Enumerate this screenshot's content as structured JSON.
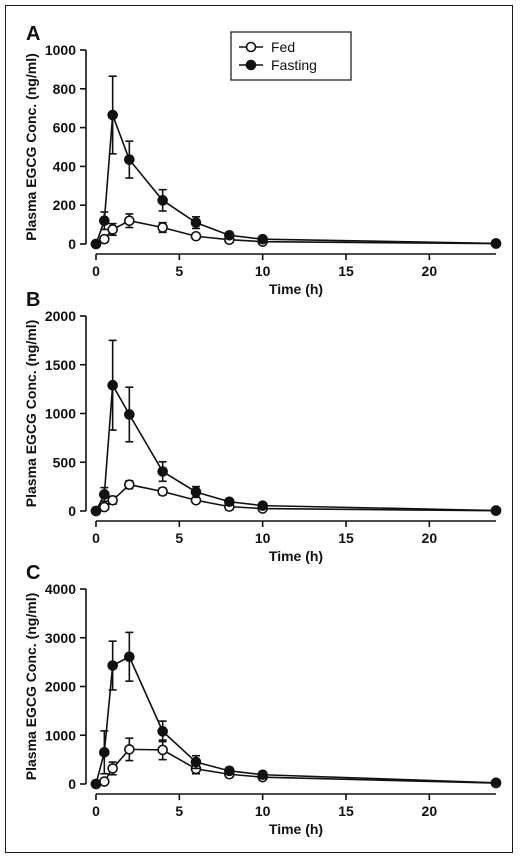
{
  "chart_data": [
    {
      "panel": "A",
      "type": "line",
      "xlabel": "Time (h)",
      "ylabel": "Plasma EGCG Conc. (ng/ml)",
      "xlim": [
        0,
        24
      ],
      "ylim": [
        0,
        1000
      ],
      "xticks": [
        0,
        5,
        10,
        15,
        20
      ],
      "yticks": [
        0,
        200,
        400,
        600,
        800,
        1000
      ],
      "legend": {
        "placement": "top-center",
        "entries": [
          "Fed",
          "Fasting"
        ]
      },
      "series": [
        {
          "name": "Fed",
          "marker": "open-circle",
          "x": [
            0,
            0.5,
            1,
            2,
            4,
            6,
            8,
            10,
            24
          ],
          "y": [
            0,
            25,
            75,
            120,
            85,
            40,
            22,
            12,
            2
          ],
          "err": [
            0,
            15,
            30,
            35,
            25,
            12,
            8,
            6,
            0
          ]
        },
        {
          "name": "Fasting",
          "marker": "filled-circle",
          "x": [
            0,
            0.5,
            1,
            2,
            4,
            6,
            8,
            10,
            24
          ],
          "y": [
            0,
            120,
            665,
            435,
            225,
            110,
            45,
            25,
            3
          ],
          "err": [
            0,
            45,
            200,
            95,
            55,
            30,
            15,
            8,
            0
          ]
        }
      ]
    },
    {
      "panel": "B",
      "type": "line",
      "xlabel": "Time (h)",
      "ylabel": "Plasma EGCG Conc. (ng/ml)",
      "xlim": [
        0,
        24
      ],
      "ylim": [
        0,
        2000
      ],
      "xticks": [
        0,
        5,
        10,
        15,
        20
      ],
      "yticks": [
        0,
        500,
        1000,
        1500,
        2000
      ],
      "series": [
        {
          "name": "Fed",
          "marker": "open-circle",
          "x": [
            0,
            0.5,
            1,
            2,
            4,
            6,
            8,
            10,
            24
          ],
          "y": [
            0,
            40,
            110,
            270,
            200,
            110,
            45,
            25,
            3
          ],
          "err": [
            0,
            25,
            40,
            40,
            35,
            25,
            10,
            8,
            0
          ]
        },
        {
          "name": "Fasting",
          "marker": "filled-circle",
          "x": [
            0,
            0.5,
            1,
            2,
            4,
            6,
            8,
            10,
            24
          ],
          "y": [
            0,
            170,
            1290,
            990,
            405,
            195,
            95,
            55,
            5
          ],
          "err": [
            0,
            70,
            460,
            280,
            100,
            55,
            25,
            15,
            0
          ]
        }
      ]
    },
    {
      "panel": "C",
      "type": "line",
      "xlabel": "Time (h)",
      "ylabel": "Plasma EGCG Conc. (ng/ml)",
      "xlim": [
        0,
        24
      ],
      "ylim": [
        0,
        4000
      ],
      "xticks": [
        0,
        5,
        10,
        15,
        20
      ],
      "yticks": [
        0,
        1000,
        2000,
        3000,
        4000
      ],
      "series": [
        {
          "name": "Fed",
          "marker": "open-circle",
          "x": [
            0,
            0.5,
            1,
            2,
            4,
            6,
            8,
            10,
            24
          ],
          "y": [
            0,
            50,
            320,
            710,
            700,
            310,
            200,
            140,
            20
          ],
          "err": [
            0,
            40,
            130,
            230,
            200,
            100,
            60,
            40,
            0
          ]
        },
        {
          "name": "Fasting",
          "marker": "filled-circle",
          "x": [
            0,
            0.5,
            1,
            2,
            4,
            6,
            8,
            10,
            24
          ],
          "y": [
            0,
            650,
            2430,
            2610,
            1080,
            450,
            270,
            190,
            25
          ],
          "err": [
            0,
            440,
            500,
            500,
            210,
            130,
            70,
            45,
            0
          ]
        }
      ]
    }
  ]
}
